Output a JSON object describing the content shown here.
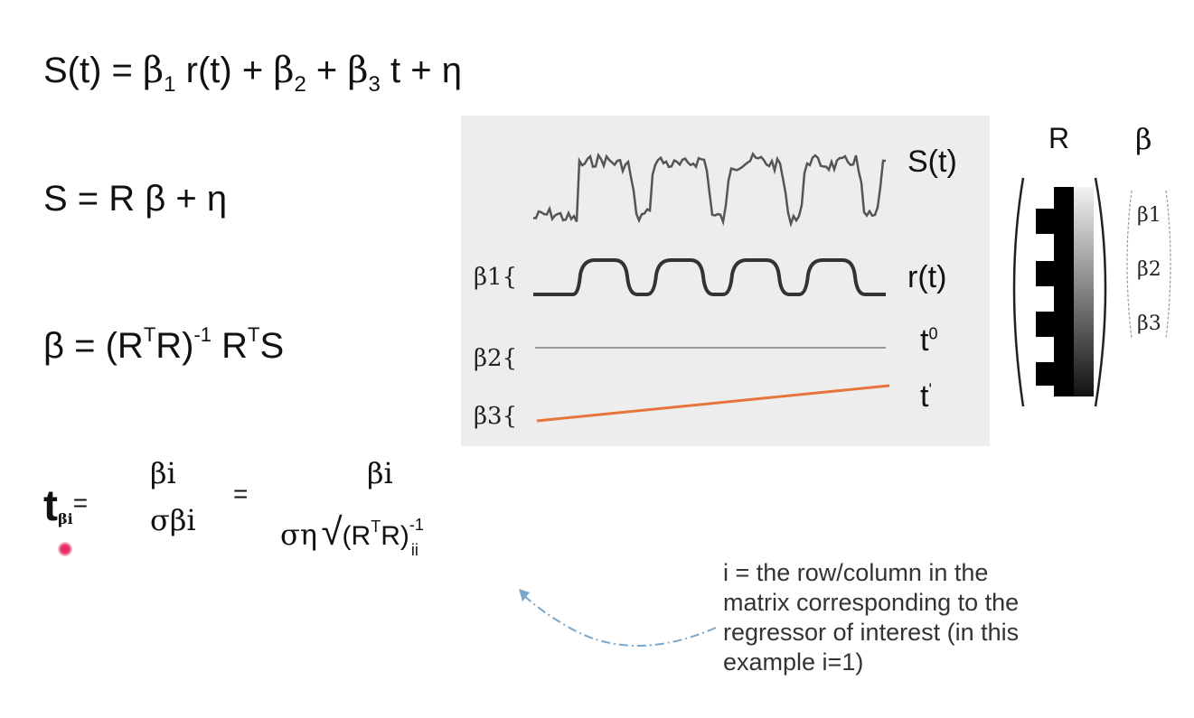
{
  "equations": {
    "model_prefix": "S(t) =",
    "model_beta1": "β",
    "model_beta1_sub": "1",
    "model_r": "r(t) +",
    "model_beta2": "β",
    "model_beta2_sub": "2",
    "model_plus": "+",
    "model_beta3": "β",
    "model_beta3_sub": "3",
    "model_rest": "t + η",
    "matrix_form": "S = R β + η",
    "solution_lhs": "β = (R",
    "solution_sup_T1": "T",
    "solution_mid": "R)",
    "solution_sup_inv": "-1",
    "solution_R": " R",
    "solution_sup_T2": "T",
    "solution_S": "S",
    "t_symbol": "t",
    "t_sub": "βi",
    "t_equals": "=",
    "t_num1": "βi",
    "t_den1": "σβi",
    "t_equals2": "=",
    "t_num2": "βi",
    "t_den2_sigma": "ση",
    "t_den2_root": "√",
    "t_den2_inner": "(R",
    "t_den2_sup_T": "T",
    "t_den2_close": "R)",
    "t_den2_sup_inv": "-1",
    "t_den2_sub_ii": "ii"
  },
  "panel": {
    "signal_label": "S(t)",
    "regressor_label": "r(t)",
    "const_label": "t",
    "const_sup": "0",
    "linear_label": "t",
    "linear_sup": "'",
    "beta1_label": "β1{",
    "beta2_label": "β2{",
    "beta3_label": "β3{",
    "colors": {
      "background": "#ededed",
      "signal": "#555555",
      "regressor": "#333333",
      "constant": "#999999",
      "linear": "#e8743b"
    }
  },
  "matrix": {
    "R_label": "R",
    "beta_label": "β",
    "beta_entries": [
      "β1",
      "β2",
      "β3"
    ]
  },
  "annotation": {
    "text_lines": [
      "i = the row/column in the",
      "matrix corresponding to the",
      "regressor of interest (in this",
      "example i=1)"
    ],
    "arrow_color": "#7aa6c9",
    "dot_color": "#e8295f"
  }
}
